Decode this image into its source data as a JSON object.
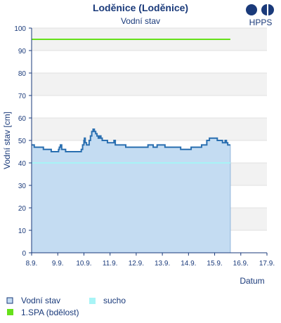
{
  "chart_data": {
    "type": "area",
    "title": "Loděnice (Loděnice)",
    "subtitle": "Vodní stav",
    "brand": "HPPS",
    "xlabel": "Datum",
    "ylabel": "Vodní stav [cm]",
    "ylim": [
      0,
      100
    ],
    "yticks": [
      0,
      10,
      20,
      30,
      40,
      50,
      60,
      70,
      80,
      90,
      100
    ],
    "xlim": [
      8.9,
      17.9
    ],
    "xtick_labels": [
      "8.9.",
      "9.9.",
      "10.9.",
      "11.9.",
      "12.9.",
      "13.9.",
      "14.9.",
      "15.9.",
      "16.9.",
      "17.9."
    ],
    "grid": true,
    "legend_position": "bottom",
    "series": [
      {
        "name": "Vodní stav",
        "color": "#2a6fb0",
        "fill": "#c4dcf2",
        "x": [
          8.9,
          9.0,
          9.1,
          9.35,
          9.5,
          9.65,
          9.75,
          9.85,
          9.93,
          9.96,
          10.0,
          10.05,
          10.1,
          10.2,
          10.3,
          10.5,
          10.65,
          10.75,
          10.8,
          10.85,
          10.9,
          10.92,
          10.95,
          11.0,
          11.05,
          11.1,
          11.15,
          11.2,
          11.25,
          11.3,
          11.35,
          11.4,
          11.45,
          11.5,
          11.55,
          11.6,
          11.7,
          11.8,
          11.9,
          12.0,
          12.05,
          12.1,
          12.3,
          12.5,
          12.7,
          12.9,
          13.2,
          13.35,
          13.45,
          13.55,
          13.7,
          13.9,
          14.0,
          14.2,
          14.4,
          14.6,
          14.7,
          14.8,
          14.9,
          15.0,
          15.1,
          15.2,
          15.3,
          15.4,
          15.5,
          15.6,
          15.7,
          15.8,
          15.9,
          16.0,
          16.1,
          16.2,
          16.3,
          16.35,
          16.4,
          16.45,
          16.5
        ],
        "values": [
          48,
          47,
          47,
          46,
          46,
          45,
          45,
          45,
          46,
          47,
          48,
          46,
          46,
          45,
          45,
          45,
          45,
          45,
          46,
          48,
          50,
          51,
          49,
          48,
          48,
          50,
          52,
          54,
          55,
          54,
          53,
          52,
          51,
          52,
          51,
          50,
          50,
          49,
          49,
          49,
          50,
          48,
          48,
          47,
          47,
          47,
          47,
          48,
          48,
          47,
          48,
          48,
          47,
          47,
          47,
          46,
          46,
          46,
          46,
          47,
          47,
          47,
          47,
          48,
          48,
          50,
          51,
          51,
          51,
          50,
          50,
          49,
          50,
          49,
          48,
          48,
          48
        ]
      },
      {
        "name": "sucho",
        "color": "#a8f4f6",
        "values_constant": 40
      },
      {
        "name": "1.SPA (bdělost)",
        "color": "#66e01a",
        "values_constant": 95
      }
    ]
  },
  "legend": [
    {
      "label": "Vodní stav",
      "kind": "box"
    },
    {
      "label": "sucho",
      "kind": "fill-cyan"
    },
    {
      "label": "1.SPA (bdělost)",
      "kind": "fill-green"
    }
  ]
}
